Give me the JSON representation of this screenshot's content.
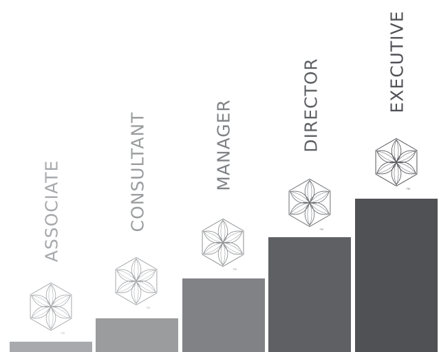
{
  "steps": [
    {
      "label": "ASSOCIATE",
      "bar_color": "#a7a9ac",
      "label_color": "#a7a9ac",
      "emblem_color": "#a7a9ac",
      "emblem_icon": "flower-of-life-hexagon-icon",
      "mark": "TM"
    },
    {
      "label": "CONSULTANT",
      "bar_color": "#9a9c9e",
      "label_color": "#9a9c9e",
      "emblem_color": "#a3a5a8",
      "emblem_icon": "flower-of-life-hexagon-icon",
      "mark": "TM"
    },
    {
      "label": "MANAGER",
      "bar_color": "#808285",
      "label_color": "#808285",
      "emblem_color": "#8c8e91",
      "emblem_icon": "flower-of-life-hexagon-icon",
      "mark": "TM"
    },
    {
      "label": "DIRECTOR",
      "bar_color": "#5e6064",
      "label_color": "#5e6064",
      "emblem_color": "#6a6c70",
      "emblem_icon": "flower-of-life-hexagon-icon",
      "mark": "TM"
    },
    {
      "label": "EXECUTIVE",
      "bar_color": "#505155",
      "label_color": "#505155",
      "emblem_color": "#505155",
      "emblem_icon": "flower-of-life-hexagon-icon",
      "mark": "TM"
    }
  ]
}
